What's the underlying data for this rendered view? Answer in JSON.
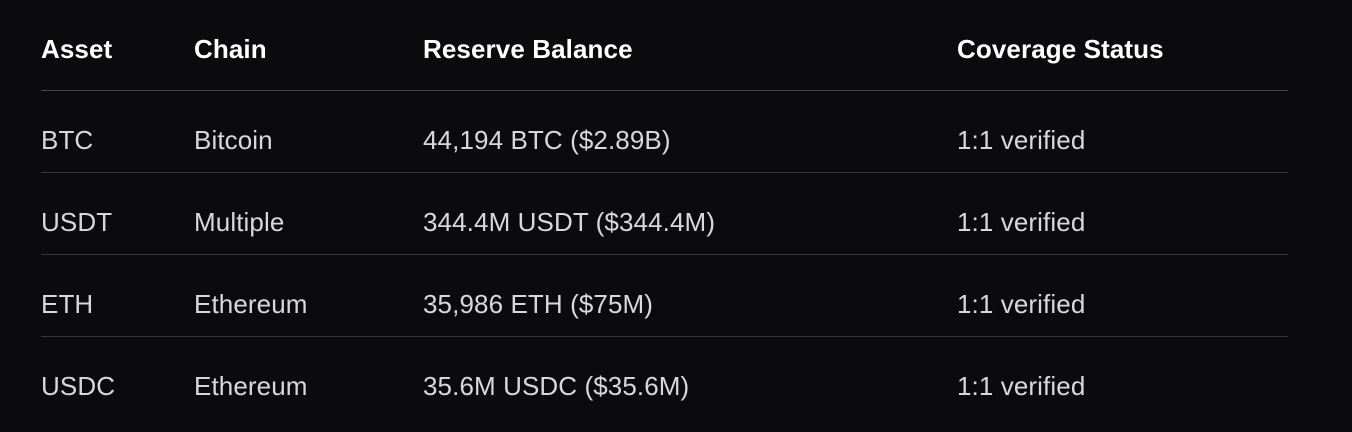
{
  "table": {
    "headers": [
      "Asset",
      "Chain",
      "Reserve Balance",
      "Coverage Status"
    ],
    "rows": [
      [
        "BTC",
        "Bitcoin",
        "44,194 BTC ($2.89B)",
        "1:1 verified"
      ],
      [
        "USDT",
        "Multiple",
        "344.4M USDT ($344.4M)",
        "1:1 verified"
      ],
      [
        "ETH",
        "Ethereum",
        "35,986 ETH ($75M)",
        "1:1 verified"
      ],
      [
        "USDC",
        "Ethereum",
        "35.6M USDC ($35.6M)",
        "1:1 verified"
      ]
    ]
  },
  "colors": {
    "background": "#0b0b0d",
    "header_text": "#ffffff",
    "body_text": "#d7d8dc",
    "divider": "#34363c"
  }
}
